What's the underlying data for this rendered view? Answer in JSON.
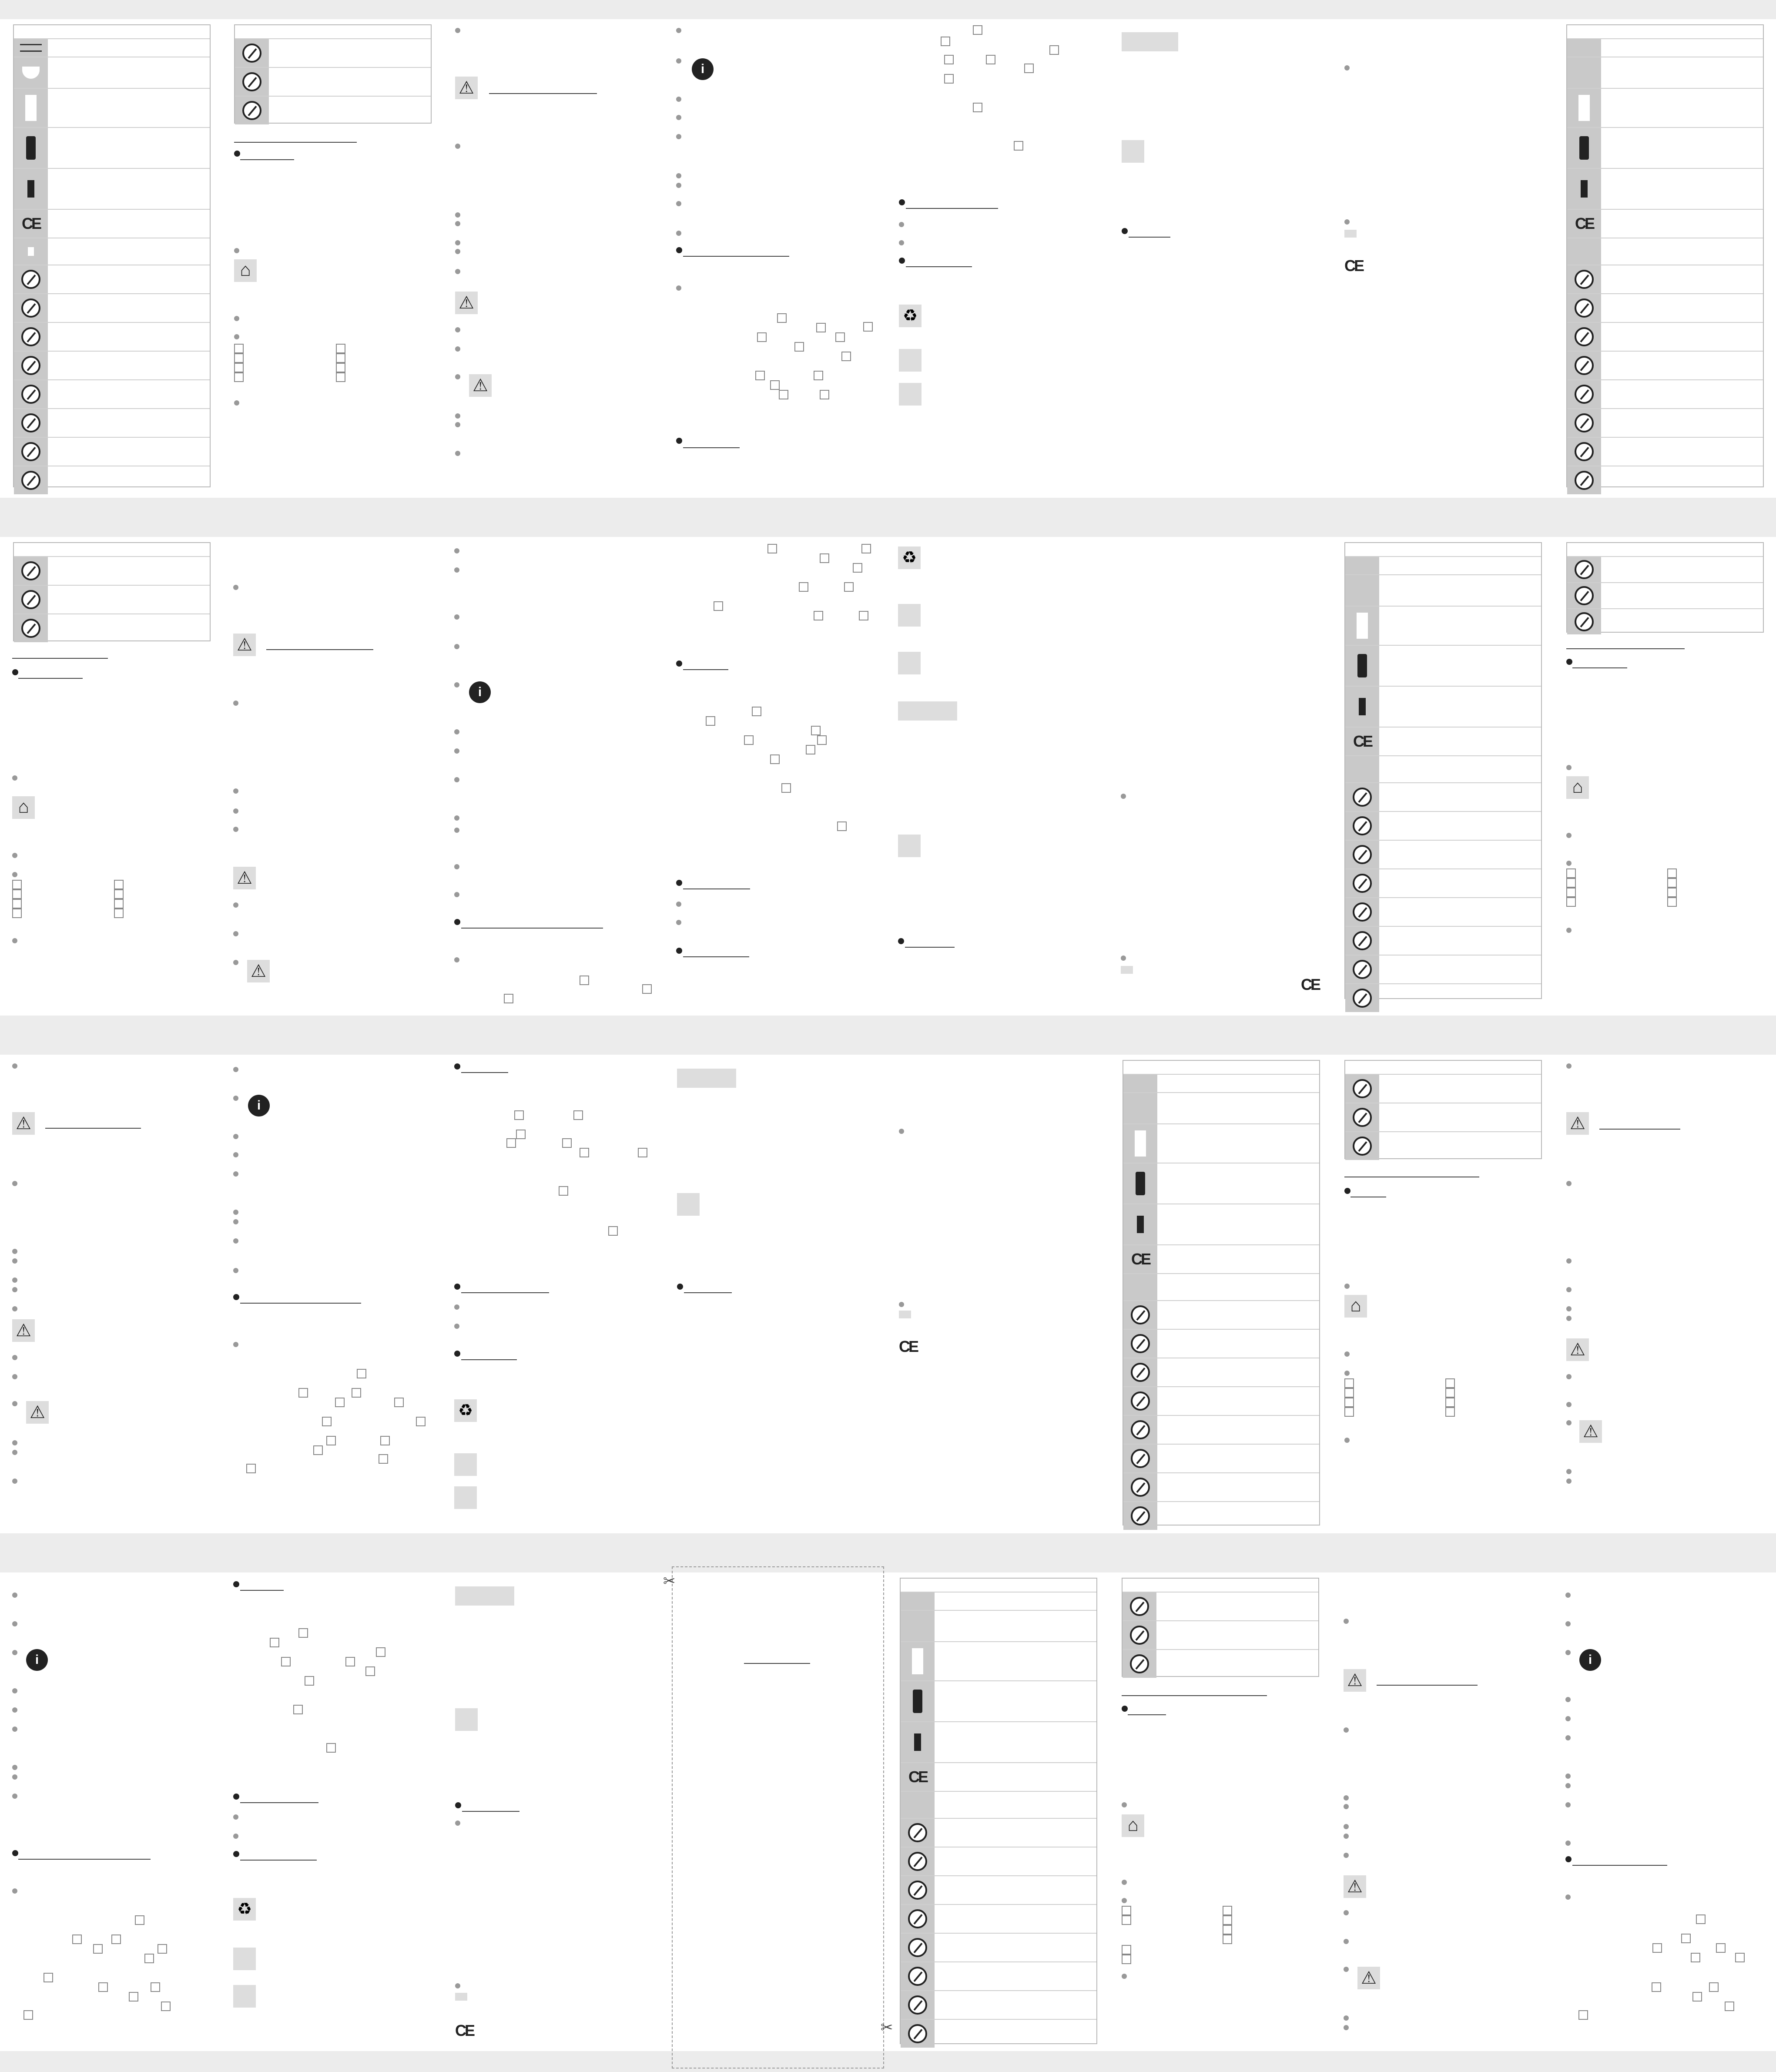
{
  "document": {
    "symbols": {
      "ce_mark": "CE",
      "warning_glyph": "⚠",
      "info_glyph": "i",
      "home_glyph": "⌂",
      "recycle_glyph": "♻",
      "scissors_glyph": "✂"
    },
    "colors": {
      "background": "#ececec",
      "page": "#ffffff",
      "icon_fill": "#c9c9c9",
      "ink": "#222222"
    },
    "icons": [
      "washing-icon",
      "bleach-icon",
      "dry-icon",
      "battery-icon",
      "ce-icon",
      "recycle-icon",
      "bin-icon",
      "warning-icon",
      "info-icon",
      "home-icon",
      "scissors-icon"
    ]
  }
}
